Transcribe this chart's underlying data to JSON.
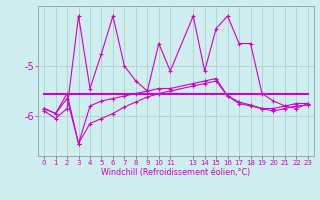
{
  "xlabel": "Windchill (Refroidissement éolien,°C)",
  "background_color": "#d0eeed",
  "grid_color": "#b0d0d0",
  "line_color": "#cc00cc",
  "x_values": [
    0,
    1,
    2,
    3,
    4,
    5,
    6,
    7,
    8,
    9,
    10,
    11,
    13,
    14,
    15,
    16,
    17,
    18,
    19,
    20,
    21,
    22,
    23
  ],
  "ylim": [
    -6.8,
    -3.8
  ],
  "yticks": [
    -6,
    -5
  ],
  "series": {
    "line1": [
      -5.9,
      -6.05,
      -5.85,
      -4.0,
      -5.45,
      -4.75,
      -4.0,
      -5.0,
      -5.3,
      -5.5,
      -4.55,
      -5.1,
      -4.0,
      -5.1,
      -4.25,
      -4.0,
      -4.55,
      -4.55,
      -5.55,
      -5.7,
      -5.8,
      -5.85,
      -5.75
    ],
    "line2": [
      -5.55,
      -5.55,
      -5.55,
      -5.55,
      -5.55,
      -5.55,
      -5.55,
      -5.55,
      -5.55,
      -5.55,
      -5.55,
      -5.55,
      -5.55,
      -5.55,
      -5.55,
      -5.55,
      -5.55,
      -5.55,
      -5.55,
      -5.55,
      -5.55,
      -5.55,
      -5.55
    ],
    "line3": [
      -5.85,
      -5.95,
      -5.55,
      -6.55,
      -5.8,
      -5.7,
      -5.65,
      -5.6,
      -5.55,
      -5.5,
      -5.45,
      -5.45,
      -5.35,
      -5.3,
      -5.25,
      -5.6,
      -5.75,
      -5.8,
      -5.85,
      -5.85,
      -5.8,
      -5.75,
      -5.75
    ],
    "line4": [
      -5.85,
      -5.95,
      -5.65,
      -6.55,
      -6.15,
      -6.05,
      -5.95,
      -5.82,
      -5.72,
      -5.62,
      -5.55,
      -5.5,
      -5.4,
      -5.35,
      -5.3,
      -5.6,
      -5.72,
      -5.78,
      -5.85,
      -5.9,
      -5.85,
      -5.8,
      -5.78
    ]
  }
}
